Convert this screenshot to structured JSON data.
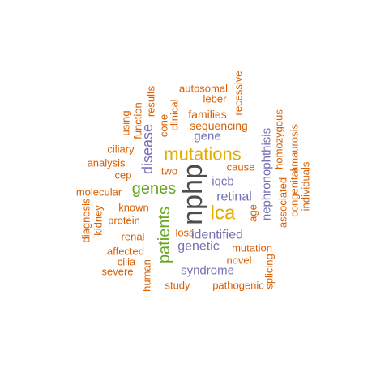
{
  "palette": {
    "orange": "#d95f02",
    "gold": "#e6ab02",
    "green": "#66a61e",
    "purple": "#7570b3",
    "dark": "#4d4d4d"
  },
  "words": [
    {
      "text": "nphp",
      "color": "dark",
      "rotated": true
    },
    {
      "text": "mutations",
      "color": "gold",
      "rotated": false
    },
    {
      "text": "lca",
      "color": "gold",
      "rotated": false
    },
    {
      "text": "genes",
      "color": "green",
      "rotated": false
    },
    {
      "text": "patients",
      "color": "green",
      "rotated": true
    },
    {
      "text": "disease",
      "color": "purple",
      "rotated": true
    },
    {
      "text": "retinal",
      "color": "purple",
      "rotated": false
    },
    {
      "text": "identified",
      "color": "purple",
      "rotated": false
    },
    {
      "text": "genetic",
      "color": "purple",
      "rotated": false
    },
    {
      "text": "syndrome",
      "color": "purple",
      "rotated": false
    },
    {
      "text": "iqcb",
      "color": "purple",
      "rotated": false
    },
    {
      "text": "gene",
      "color": "purple",
      "rotated": false
    },
    {
      "text": "nephronophthisis",
      "color": "purple",
      "rotated": true
    },
    {
      "text": "sequencing",
      "color": "orange",
      "rotated": false
    },
    {
      "text": "families",
      "color": "orange",
      "rotated": false
    },
    {
      "text": "autosomal",
      "color": "orange",
      "rotated": false
    },
    {
      "text": "leber",
      "color": "orange",
      "rotated": false
    },
    {
      "text": "recessive",
      "color": "orange",
      "rotated": true
    },
    {
      "text": "clinical",
      "color": "orange",
      "rotated": true
    },
    {
      "text": "cone",
      "color": "orange",
      "rotated": true
    },
    {
      "text": "results",
      "color": "orange",
      "rotated": true
    },
    {
      "text": "function",
      "color": "orange",
      "rotated": true
    },
    {
      "text": "using",
      "color": "orange",
      "rotated": true
    },
    {
      "text": "ciliary",
      "color": "orange",
      "rotated": false
    },
    {
      "text": "analysis",
      "color": "orange",
      "rotated": false
    },
    {
      "text": "cep",
      "color": "orange",
      "rotated": false
    },
    {
      "text": "two",
      "color": "orange",
      "rotated": false
    },
    {
      "text": "cause",
      "color": "orange",
      "rotated": false
    },
    {
      "text": "molecular",
      "color": "orange",
      "rotated": false
    },
    {
      "text": "diagnosis",
      "color": "orange",
      "rotated": true
    },
    {
      "text": "kidney",
      "color": "orange",
      "rotated": true
    },
    {
      "text": "known",
      "color": "orange",
      "rotated": false
    },
    {
      "text": "protein",
      "color": "orange",
      "rotated": false
    },
    {
      "text": "renal",
      "color": "orange",
      "rotated": false
    },
    {
      "text": "affected",
      "color": "orange",
      "rotated": false
    },
    {
      "text": "cilia",
      "color": "orange",
      "rotated": false
    },
    {
      "text": "severe",
      "color": "orange",
      "rotated": false
    },
    {
      "text": "human",
      "color": "orange",
      "rotated": true
    },
    {
      "text": "loss",
      "color": "orange",
      "rotated": false
    },
    {
      "text": "mutation",
      "color": "orange",
      "rotated": false
    },
    {
      "text": "novel",
      "color": "orange",
      "rotated": false
    },
    {
      "text": "study",
      "color": "orange",
      "rotated": false
    },
    {
      "text": "pathogenic",
      "color": "orange",
      "rotated": false
    },
    {
      "text": "age",
      "color": "orange",
      "rotated": true
    },
    {
      "text": "associated",
      "color": "orange",
      "rotated": true
    },
    {
      "text": "homozygous",
      "color": "orange",
      "rotated": true
    },
    {
      "text": "congenital",
      "color": "orange",
      "rotated": true
    },
    {
      "text": "amaurosis",
      "color": "orange",
      "rotated": true
    },
    {
      "text": "individuals",
      "color": "orange",
      "rotated": true
    },
    {
      "text": "splicing",
      "color": "orange",
      "rotated": true
    }
  ]
}
